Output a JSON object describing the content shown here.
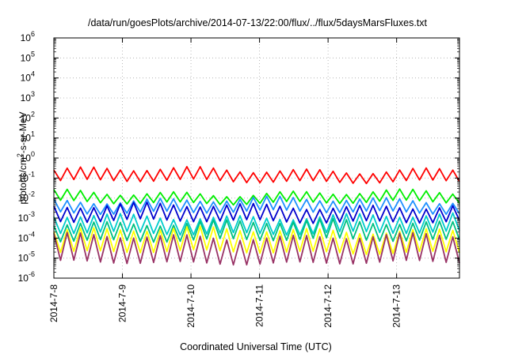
{
  "chart_data": {
    "type": "line",
    "title": "/data/run/goesPlots/archive/2014-07-13/22:00/flux/../flux/5daysMarsFluxes.txt",
    "xlabel": "Coordinated Universal Time (UTC)",
    "ylabel": {
      "before": "protons/cm",
      "sup": "2",
      "after": "-s-sr-MeV"
    },
    "y_scale": "log",
    "ylim": [
      1e-06,
      1000000.0
    ],
    "y_ticks": [
      {
        "base": "10",
        "exp": "6"
      },
      {
        "base": "10",
        "exp": "5"
      },
      {
        "base": "10",
        "exp": "4"
      },
      {
        "base": "10",
        "exp": "3"
      },
      {
        "base": "10",
        "exp": "2"
      },
      {
        "base": "10",
        "exp": "1"
      },
      {
        "base": "10",
        "exp": "0"
      },
      {
        "base": "10",
        "exp": "-1"
      },
      {
        "base": "10",
        "exp": "-2"
      },
      {
        "base": "10",
        "exp": "-3"
      },
      {
        "base": "10",
        "exp": "-4"
      },
      {
        "base": "10",
        "exp": "-5"
      },
      {
        "base": "10",
        "exp": "-6"
      }
    ],
    "xlim": [
      "2014-07-08",
      "2014-07-13 22:00"
    ],
    "x_ticks": [
      "2014-7-8",
      "2014-7-9",
      "2014-7-10",
      "2014-7-11",
      "2014-7-12",
      "2014-7-13"
    ],
    "grid": true,
    "legend": "none",
    "series": [
      {
        "color": "#ff0000",
        "trough": 0.07,
        "peak": 0.25
      },
      {
        "color": "#00ee00",
        "trough": 0.006,
        "peak": 0.018
      },
      {
        "color": "#1e90ff",
        "trough": 0.002,
        "peak": 0.008
      },
      {
        "color": "#0000cd",
        "trough": 0.0007,
        "peak": 0.004
      },
      {
        "color": "#00cccc",
        "trough": 0.00018,
        "peak": 0.0012
      },
      {
        "color": "#00c080",
        "trough": 8e-05,
        "peak": 0.0006
      },
      {
        "color": "#ffff00",
        "trough": 2e-05,
        "peak": 0.00025
      },
      {
        "color": "#993366",
        "trough": 6e-06,
        "peak": 0.00012
      }
    ]
  }
}
